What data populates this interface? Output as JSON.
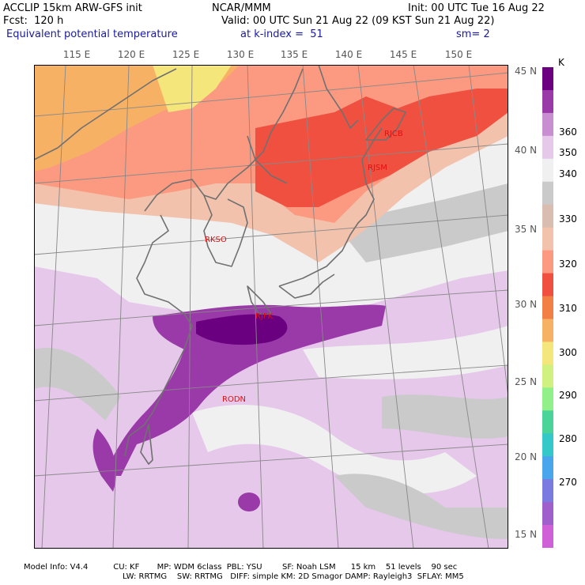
{
  "header": {
    "line1_left": "ACCLIP 15km ARW-GFS init",
    "line1_center": "NCAR/MMM",
    "line1_right": "Init: 00 UTC Tue 16 Aug 22",
    "line2_left": "Fcst:  120 h",
    "line2_right": "Valid: 00 UTC Sun 21 Aug 22 (09 KST Sun 21 Aug 22)",
    "line3_field": "Equivalent potential temperature",
    "line3_level": "at k-index =  51",
    "line3_smooth": "sm= 2"
  },
  "lon_labels": [
    "115 E",
    "120 E",
    "125 E",
    "130 E",
    "135 E",
    "140 E",
    "145 E",
    "150 E"
  ],
  "lat_labels": [
    "45 N",
    "40 N",
    "35 N",
    "30 N",
    "25 N",
    "20 N",
    "15 N"
  ],
  "stations": [
    "RJCB",
    "RJSM",
    "RKSO",
    "RJFK",
    "RODN"
  ],
  "colorbar": {
    "unit": "K",
    "labels": [
      "360",
      "350",
      "340",
      "330",
      "320",
      "310",
      "300",
      "290",
      "280",
      "270"
    ],
    "colors": [
      "#6a0080",
      "#9a3aa8",
      "#c78fd0",
      "#e5c8ea",
      "#f0f0f0",
      "#cacaca",
      "#d8bdb0",
      "#f2c2ac",
      "#fb9a80",
      "#f05040",
      "#f27f45",
      "#f7b165",
      "#f4e67a",
      "#d0f080",
      "#92f08a",
      "#4ad49a",
      "#35c8c8",
      "#4aa6ec",
      "#7a7ae0",
      "#a060cc",
      "#d060d8"
    ]
  },
  "footer": {
    "line1": "Model Info: V4.4          CU: KF       MP: WDM 6class  PBL: YSU        SF: Noah LSM      15 km    51 levels    90 sec",
    "line2": "LW: RRTMG    SW: RRTMG   DIFF: simple KM: 2D Smagor DAMP: Rayleigh3  SFLAY: MM5"
  }
}
